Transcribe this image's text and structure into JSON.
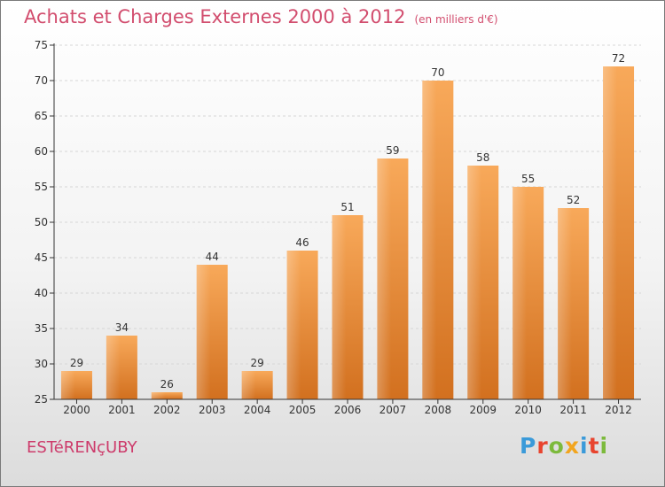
{
  "colors": {
    "title": "#d24d6e",
    "commune": "#cd3b6b",
    "bar_light": "#f8a95a",
    "bar_dark": "#d2701f",
    "axis": "#333333",
    "grid": "#d6d6d6"
  },
  "header": {
    "title": "Achats et Charges Externes 2000 à 2012",
    "subtitle": "(en milliers d'€)"
  },
  "footer": {
    "commune": "ESTéRENçUBY",
    "logo": "Proxiti",
    "logo_colors": [
      "#3a9ad9",
      "#e8442e",
      "#7cba3c",
      "#f2a51e",
      "#3a9ad9",
      "#e8442e",
      "#7cba3c"
    ]
  },
  "chart_data": {
    "type": "bar",
    "title": "Achats et Charges Externes 2000 à 2012",
    "subtitle": "(en milliers d'€)",
    "categories": [
      "2000",
      "2001",
      "2002",
      "2003",
      "2004",
      "2005",
      "2006",
      "2007",
      "2008",
      "2009",
      "2010",
      "2011",
      "2012"
    ],
    "values": [
      29,
      34,
      26,
      44,
      29,
      46,
      51,
      59,
      70,
      58,
      55,
      52,
      72
    ],
    "ylim": [
      25,
      75
    ],
    "yticks": [
      25,
      30,
      35,
      40,
      45,
      50,
      55,
      60,
      65,
      70,
      75
    ],
    "grid": "horizontal-dashed",
    "data_labels": true
  }
}
